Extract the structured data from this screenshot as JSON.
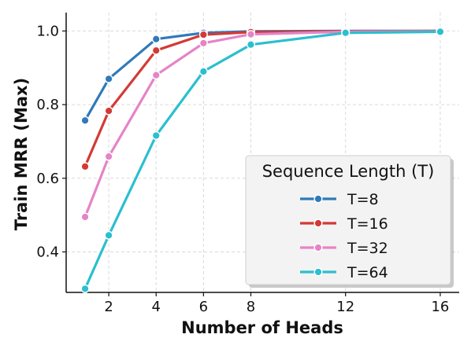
{
  "chart_data": {
    "type": "line",
    "xlabel": "Number of Heads",
    "ylabel": "Train MRR (Max)",
    "x_ticks": [
      2,
      4,
      6,
      8,
      12,
      16
    ],
    "y_ticks": [
      "0.4",
      "0.6",
      "0.8",
      "1.0"
    ],
    "xlim": [
      0.2,
      16.8
    ],
    "ylim": [
      0.29,
      1.05
    ],
    "grid": true,
    "legend": {
      "title": "Sequence Length (T)",
      "placement": "lower-right"
    },
    "x": [
      1,
      2,
      4,
      6,
      8,
      12,
      16
    ],
    "series": [
      {
        "name": "T=8",
        "color": "#2f7ab9",
        "values": [
          0.757,
          0.87,
          0.978,
          0.995,
          0.999,
          1.0,
          1.0
        ]
      },
      {
        "name": "T=16",
        "color": "#d33a35",
        "values": [
          0.632,
          0.783,
          0.947,
          0.99,
          0.997,
          0.999,
          1.0
        ]
      },
      {
        "name": "T=32",
        "color": "#e584c6",
        "values": [
          0.495,
          0.659,
          0.88,
          0.967,
          0.991,
          0.998,
          0.999
        ]
      },
      {
        "name": "T=64",
        "color": "#2bbfcf",
        "values": [
          0.3,
          0.445,
          0.716,
          0.89,
          0.963,
          0.995,
          0.998
        ]
      }
    ]
  }
}
